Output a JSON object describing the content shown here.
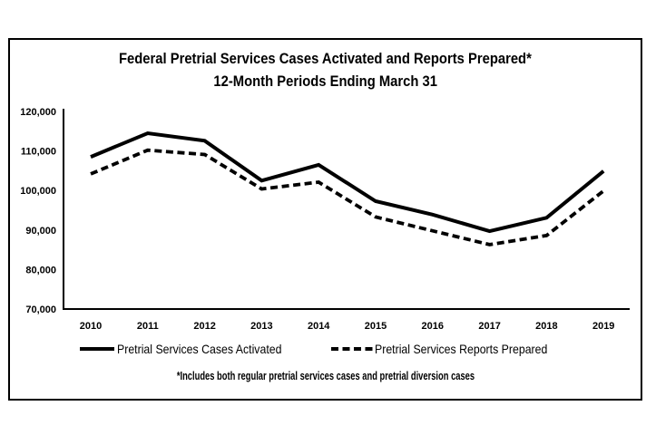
{
  "frame": {
    "background": "#ffffff",
    "border_color": "#000000"
  },
  "chart_data": {
    "type": "line",
    "title": "Federal Pretrial Services Cases Activated and Reports Prepared*",
    "subtitle": "12-Month Periods Ending March 31",
    "categories": [
      "2010",
      "2011",
      "2012",
      "2013",
      "2014",
      "2015",
      "2016",
      "2017",
      "2018",
      "2019"
    ],
    "series": [
      {
        "name": "Pretrial Services Cases Activated",
        "line_style": "solid",
        "color": "#000000",
        "values": [
          108500,
          114500,
          112600,
          102500,
          106500,
          97300,
          93900,
          89700,
          93100,
          104900
        ]
      },
      {
        "name": "Pretrial Services Reports Prepared",
        "line_style": "dashed",
        "color": "#000000",
        "values": [
          104200,
          110200,
          109100,
          100400,
          102100,
          93300,
          89800,
          86300,
          88600,
          99900
        ]
      }
    ],
    "ylim": [
      70000,
      120000
    ],
    "yticks": [
      {
        "value": 70000,
        "label": "70,000"
      },
      {
        "value": 80000,
        "label": "80,000"
      },
      {
        "value": 90000,
        "label": "90,000"
      },
      {
        "value": 100000,
        "label": "100,000"
      },
      {
        "value": 110000,
        "label": "110,000"
      },
      {
        "value": 120000,
        "label": "120,000"
      }
    ],
    "grid": false,
    "legend_position": "bottom",
    "footnote": "*Includes both regular pretrial services cases and pretrial diversion cases"
  }
}
